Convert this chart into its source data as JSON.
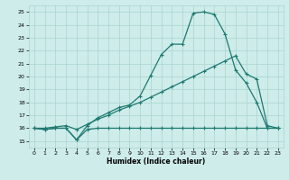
{
  "xlabel": "Humidex (Indice chaleur)",
  "xlim": [
    -0.5,
    23.5
  ],
  "ylim": [
    14.5,
    25.5
  ],
  "xticks": [
    0,
    1,
    2,
    3,
    4,
    5,
    6,
    7,
    8,
    9,
    10,
    11,
    12,
    13,
    14,
    15,
    16,
    17,
    18,
    19,
    20,
    21,
    22,
    23
  ],
  "yticks": [
    15,
    16,
    17,
    18,
    19,
    20,
    21,
    22,
    23,
    24,
    25
  ],
  "bg_color": "#cdecea",
  "grid_color": "#aad4d0",
  "line_color": "#1e7a70",
  "line1_x": [
    0,
    1,
    2,
    3,
    4,
    5,
    6,
    7,
    8,
    9,
    10,
    11,
    12,
    13,
    14,
    15,
    16,
    17,
    18,
    19,
    20,
    21,
    22,
    23
  ],
  "line1_y": [
    16.0,
    15.9,
    16.0,
    16.0,
    15.1,
    15.9,
    16.0,
    16.0,
    16.0,
    16.0,
    16.0,
    16.0,
    16.0,
    16.0,
    16.0,
    16.0,
    16.0,
    16.0,
    16.0,
    16.0,
    16.0,
    16.0,
    16.0,
    16.0
  ],
  "line2_x": [
    0,
    1,
    2,
    3,
    4,
    5,
    6,
    7,
    8,
    9,
    10,
    11,
    12,
    13,
    14,
    15,
    16,
    17,
    18,
    19,
    20,
    21,
    22,
    23
  ],
  "line2_y": [
    16.0,
    15.9,
    16.0,
    16.0,
    15.1,
    16.2,
    16.8,
    17.2,
    17.6,
    17.8,
    18.5,
    20.1,
    21.7,
    22.5,
    22.5,
    24.9,
    25.0,
    24.8,
    23.3,
    20.5,
    19.5,
    18.0,
    16.0,
    16.0
  ],
  "line3_x": [
    0,
    1,
    2,
    3,
    4,
    5,
    6,
    7,
    8,
    9,
    10,
    11,
    12,
    13,
    14,
    15,
    16,
    17,
    18,
    19,
    20,
    21,
    22,
    23
  ],
  "line3_y": [
    16.0,
    16.0,
    16.1,
    16.2,
    15.9,
    16.3,
    16.7,
    17.0,
    17.4,
    17.7,
    18.0,
    18.4,
    18.8,
    19.2,
    19.6,
    20.0,
    20.4,
    20.8,
    21.2,
    21.6,
    20.2,
    19.8,
    16.2,
    16.0
  ]
}
